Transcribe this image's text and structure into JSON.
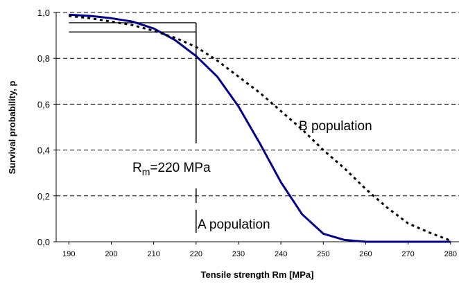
{
  "chart_data": {
    "type": "line",
    "title": "",
    "xlabel": "Tensile strength Rm [MPa]",
    "ylabel": "Survival probability, p",
    "xlim": [
      187,
      282
    ],
    "ylim": [
      0,
      1
    ],
    "x_ticks": [
      "190",
      "200",
      "210",
      "220",
      "230",
      "240",
      "250",
      "260",
      "270",
      "280"
    ],
    "y_ticks": [
      "0,0",
      "0,2",
      "0,4",
      "0,6",
      "0,8",
      "1,0"
    ],
    "grid": "horizontal-dashed",
    "series": [
      {
        "name": "A population",
        "style": "solid",
        "color": "#00008b",
        "x": [
          190,
          195,
          200,
          205,
          210,
          215,
          220,
          225,
          230,
          235,
          240,
          245,
          250,
          255,
          260,
          270,
          280
        ],
        "y": [
          0.99,
          0.985,
          0.975,
          0.96,
          0.93,
          0.88,
          0.81,
          0.72,
          0.59,
          0.43,
          0.26,
          0.12,
          0.035,
          0.008,
          0.0,
          0.0,
          0.0
        ]
      },
      {
        "name": "B population",
        "style": "dotted",
        "color": "#000000",
        "x": [
          190,
          195,
          200,
          205,
          210,
          215,
          220,
          225,
          230,
          235,
          240,
          245,
          250,
          255,
          260,
          265,
          270,
          275,
          280
        ],
        "y": [
          0.985,
          0.975,
          0.96,
          0.945,
          0.92,
          0.89,
          0.85,
          0.79,
          0.72,
          0.65,
          0.57,
          0.49,
          0.4,
          0.32,
          0.23,
          0.15,
          0.08,
          0.04,
          0.005
        ]
      }
    ],
    "annotations": {
      "rm_label_main": "R",
      "rm_label_sub": "m",
      "rm_label_rest": "=220 MPa",
      "marker_x": 220,
      "marker_p_upper": 0.955,
      "marker_p_lower": 0.915,
      "label_a": "A population",
      "label_b": "B population"
    }
  }
}
